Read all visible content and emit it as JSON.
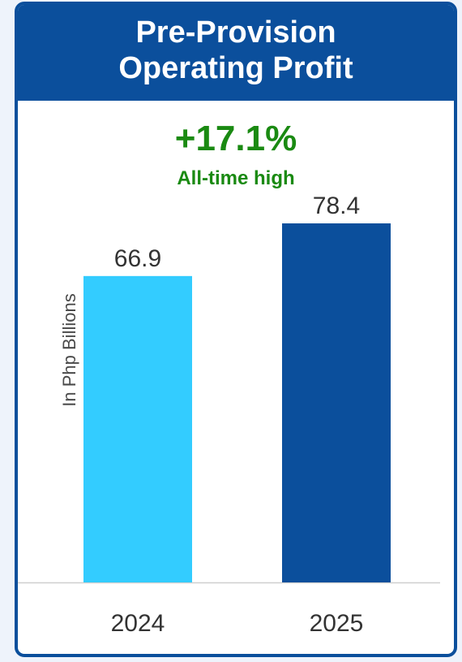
{
  "header": {
    "title_line1": "Pre-Provision",
    "title_line2": "Operating Profit"
  },
  "highlight": {
    "growth": "+17.1%",
    "note": "All-time high"
  },
  "colors": {
    "brand": "#0b4f9c",
    "positive": "#1a8a12",
    "bar_2024": "#33ccff",
    "bar_2025": "#0b4f9c"
  },
  "chart_data": {
    "type": "bar",
    "categories": [
      "2024",
      "2025"
    ],
    "values": [
      66.9,
      78.4
    ],
    "value_labels": [
      "66.9",
      "78.4"
    ],
    "bar_colors": [
      "#33ccff",
      "#0b4f9c"
    ],
    "title": "Pre-Provision Operating Profit",
    "ylabel": "In Php Billions",
    "xlabel": "",
    "ylim": [
      0,
      78.4
    ],
    "grid": false,
    "legend": "none"
  }
}
